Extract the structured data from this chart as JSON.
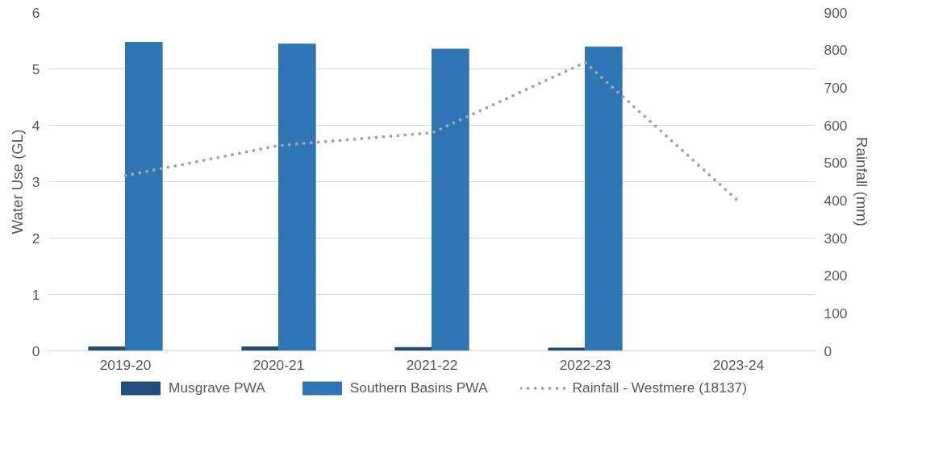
{
  "chart_data": {
    "type": "bar",
    "categories": [
      "2019-20",
      "2020-21",
      "2021-22",
      "2022-23",
      "2023-24"
    ],
    "ylabel": "Water Use (GL)",
    "y2label": "Rainfall (mm)",
    "series": [
      {
        "name": "Musgrave PWA",
        "color": "#1f4e79",
        "values": [
          0.07,
          0.07,
          0.06,
          0.05,
          null
        ]
      },
      {
        "name": "Southern Basins PWA",
        "color": "#2e75b6",
        "values": [
          5.47,
          5.44,
          5.35,
          5.39,
          null
        ]
      },
      {
        "name": "Rainfall - Westmere (18137)",
        "type": "line",
        "axis": "y2",
        "color": "#a5a5a5",
        "line_style": "dotted",
        "values": [
          466,
          546,
          580,
          767,
          398
        ]
      }
    ],
    "ylim": [
      0,
      6
    ],
    "yticks": [
      0,
      1,
      2,
      3,
      4,
      5,
      6
    ],
    "y2lim": [
      0,
      900
    ],
    "y2ticks": [
      0,
      100,
      200,
      300,
      400,
      500,
      600,
      700,
      800,
      900
    ],
    "grid": "y",
    "legend": "bottom"
  }
}
